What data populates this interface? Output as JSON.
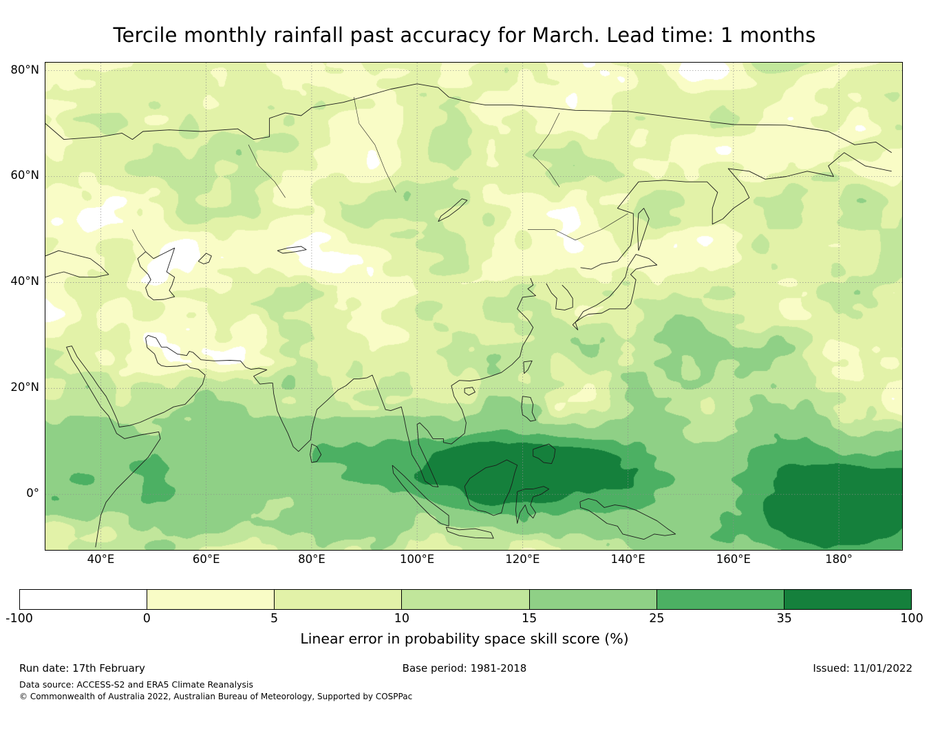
{
  "chart_data": {
    "type": "heatmap",
    "subtype": "filled-contour geographic skill-score map (longitude-latitude, Asia and western Pacific)",
    "title": "Tercile monthly rainfall past accuracy for March. Lead time: 1 months",
    "extent": {
      "lon_east": [
        29.5,
        192.0
      ],
      "lat_north": [
        -10.5,
        81.5
      ]
    },
    "x_tick_degrees": [
      40,
      60,
      80,
      100,
      120,
      140,
      160,
      180
    ],
    "x_tick_labels": [
      "40°E",
      "60°E",
      "80°E",
      "100°E",
      "120°E",
      "140°E",
      "160°E",
      "180°"
    ],
    "y_tick_degrees": [
      80,
      60,
      40,
      20,
      0
    ],
    "y_tick_labels": [
      "80°N",
      "60°N",
      "40°N",
      "20°N",
      "0°"
    ],
    "grid": true,
    "colorbar": {
      "label": "Linear error in probability space skill score (%)",
      "levels": [
        -100,
        0,
        5,
        10,
        15,
        25,
        35,
        100
      ],
      "tick_labels": [
        "-100",
        "0",
        "5",
        "10",
        "15",
        "25",
        "35",
        "100"
      ],
      "colors": [
        "#ffffff",
        "#f9fcc6",
        "#e2f2a8",
        "#c1e69b",
        "#8fd086",
        "#4cb063",
        "#15803c"
      ]
    },
    "field_summary": [
      "Highest skill (35-100%, darkest green) along the equatorial band: Indonesia, Borneo, Philippines, New Guinea and the equatorial central Pacific at the right edge of the map",
      "Moderate skill (15-35%) over the tropical Indian Ocean, Bay of Bengal, Southeast Asia and a subtropical west-Pacific band near 25-30N",
      "Low skill (0-15%, pale yellow to light green) over most of mid-latitude and northern Asia, with scattered white patches where the score is below 0"
    ]
  },
  "footer": {
    "run_date": "Run date: 17th February",
    "base_period": "Base period: 1981-2018",
    "issued": "Issued: 11/01/2022",
    "data_source": "Data source: ACCESS-S2 and ERA5 Climate Reanalysis",
    "copyright": "© Commonwealth of Australia 2022, Australian Bureau of Meteorology, Supported by COSPPac"
  }
}
